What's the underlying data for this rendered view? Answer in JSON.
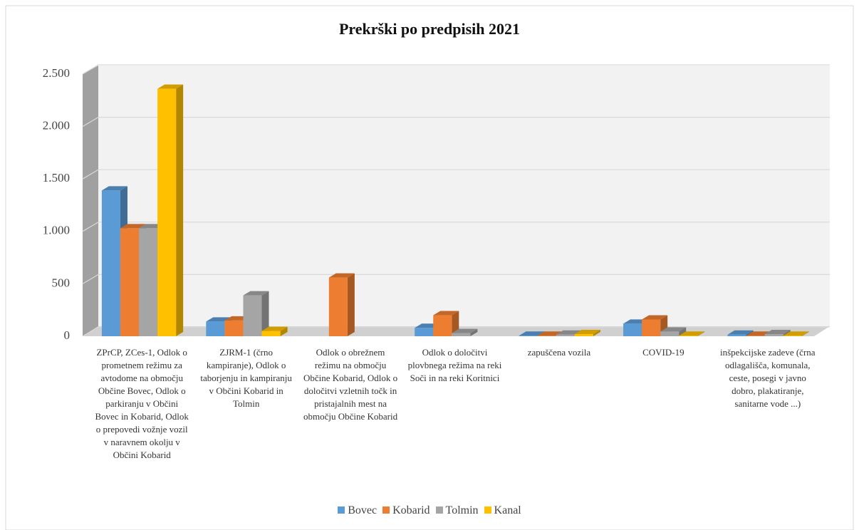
{
  "chart_data": {
    "type": "bar3d",
    "title": "Prekrški po predpisih 2021",
    "categories": [
      "ZPrCP, ZCes-1, Odlok o prometnem režimu za avtodome na območju Občine Bovec, Odlok o parkiranju v Občini Bovec in Kobarid, Odlok o prepovedi vožnje vozil v naravnem okolju v Občini Kobarid",
      "ZJRM-1 (črno kampiranje), Odlok o taborjenju in kampiranju v Občini Kobarid in Tolmin",
      "Odlok o obrežnem režimu na območju Občine Kobarid, Odlok o določitvi vzletnih točk in pristajalnih mest na območju Občine Kobarid",
      "Odlok o določitvi plovbnega režima na reki Soči in na reki Koritnici",
      "zapuščena vozila",
      "COVID-19",
      "inšpekcijske zadeve (črna odlagališča, komunala, ceste, posegi v javno dobro, plakatiranje, sanitarne vode ...)"
    ],
    "series": [
      {
        "name": "Bovec",
        "color": "#5b9bd5",
        "values": [
          1390,
          140,
          null,
          80,
          5,
          120,
          15
        ]
      },
      {
        "name": "Kobarid",
        "color": "#ed7d31",
        "values": [
          1030,
          150,
          560,
          200,
          5,
          160,
          5
        ]
      },
      {
        "name": "Tolmin",
        "color": "#a5a5a5",
        "values": [
          1030,
          390,
          null,
          30,
          15,
          45,
          20
        ]
      },
      {
        "name": "Kanal",
        "color": "#ffc000",
        "values": [
          2360,
          50,
          null,
          null,
          20,
          5,
          5
        ]
      }
    ],
    "ylim": [
      0,
      2500
    ],
    "yticks": [
      0,
      500,
      {
        "value": 1000,
        "label": "1.000"
      },
      {
        "value": 1500,
        "label": "1.500"
      },
      {
        "value": 2000,
        "label": "2.000"
      },
      {
        "value": 2500,
        "label": "2.500"
      }
    ],
    "grid": true,
    "legend": "bottom"
  }
}
